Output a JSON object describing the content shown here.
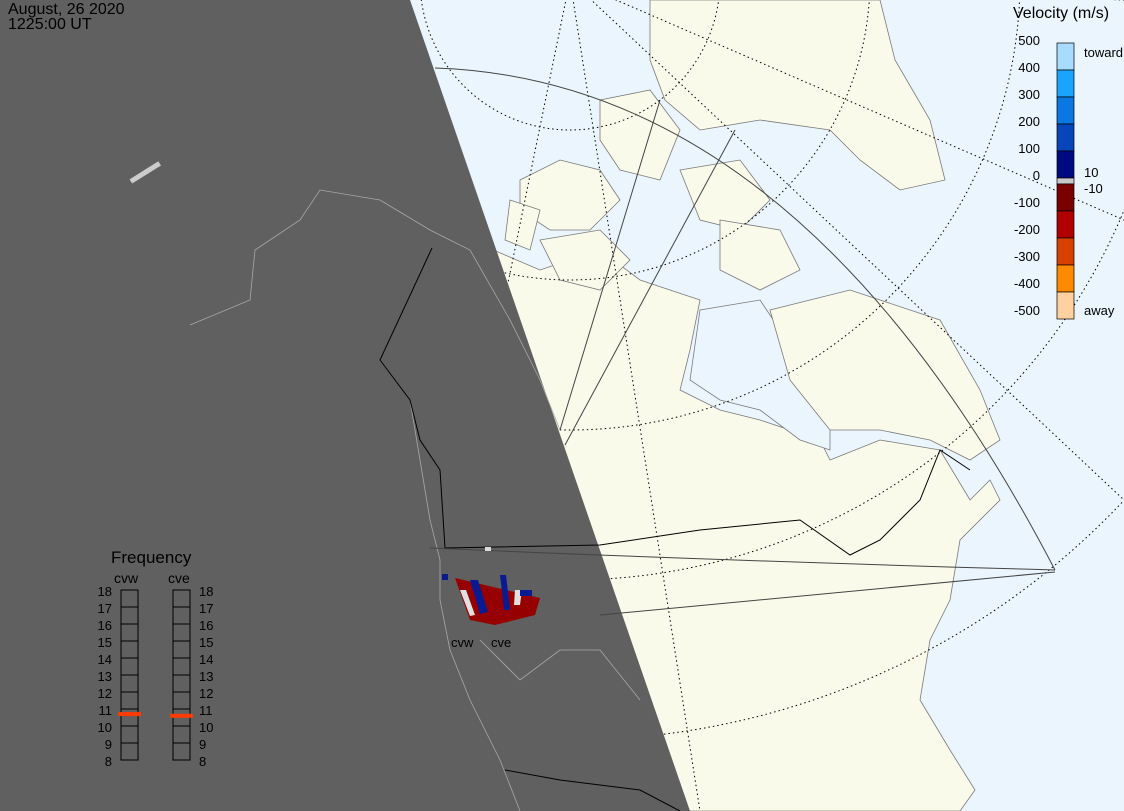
{
  "header": {
    "date": "August, 26 2020",
    "time": "1225:00 UT"
  },
  "colorbar": {
    "title": "Velocity (m/s)",
    "ticks": [
      "500",
      "400",
      "300",
      "200",
      "100",
      "0",
      "-100",
      "-200",
      "-300",
      "-400",
      "-500"
    ],
    "toward_label": "toward",
    "away_label": "away",
    "plus_label": "10",
    "minus_label": "-10",
    "colors": [
      "#a8dcff",
      "#1aa3ff",
      "#0a78e0",
      "#0845b8",
      "#000a80",
      "#c8c8c8",
      "#7a0000",
      "#b00000",
      "#d84000",
      "#ff8a00",
      "#ffd0a0"
    ]
  },
  "frequency": {
    "title": "Frequency",
    "radars": [
      {
        "name": "cvw",
        "value_mhz": 10.7
      },
      {
        "name": "cve",
        "value_mhz": 10.6
      }
    ],
    "scale": [
      "18",
      "17",
      "16",
      "15",
      "14",
      "13",
      "12",
      "11",
      "10",
      "9",
      "8"
    ],
    "marker_color": "#ff3a00"
  },
  "map": {
    "radar_labels": [
      "cvw",
      "cve"
    ],
    "colors": {
      "night": "#606060",
      "ocean": "#eaf5fd",
      "land": "#fafaeb",
      "night_coast": "#a8a8a8"
    }
  }
}
